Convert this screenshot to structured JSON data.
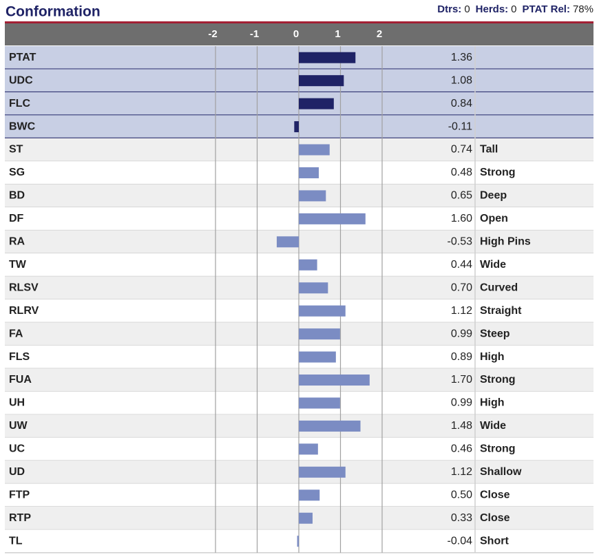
{
  "chart_data": {
    "type": "bar",
    "orientation": "horizontal",
    "title": "Conformation",
    "stats": [
      {
        "label": "Dtrs:",
        "value": "0"
      },
      {
        "label": "Herds:",
        "value": "0"
      },
      {
        "label": "PTAT Rel:",
        "value": "78%"
      }
    ],
    "categories": [
      "PTAT",
      "UDC",
      "FLC",
      "BWC",
      "ST",
      "SG",
      "BD",
      "DF",
      "RA",
      "TW",
      "RLSV",
      "RLRV",
      "FA",
      "FLS",
      "FUA",
      "UH",
      "UW",
      "UC",
      "UD",
      "FTP",
      "RTP",
      "TL"
    ],
    "values": [
      1.36,
      1.08,
      0.84,
      -0.11,
      0.74,
      0.48,
      0.65,
      1.6,
      -0.53,
      0.44,
      0.7,
      1.12,
      0.99,
      0.89,
      1.7,
      0.99,
      1.48,
      0.46,
      1.12,
      0.5,
      0.33,
      -0.04
    ],
    "value_labels": [
      "1.36",
      "1.08",
      "0.84",
      "-0.11",
      "0.74",
      "0.48",
      "0.65",
      "1.60",
      "-0.53",
      "0.44",
      "0.70",
      "1.12",
      "0.99",
      "0.89",
      "1.70",
      "0.99",
      "1.48",
      "0.46",
      "1.12",
      "0.50",
      "0.33",
      "-0.04"
    ],
    "descriptors": [
      null,
      null,
      null,
      null,
      "Tall",
      "Strong",
      "Deep",
      "Open",
      "High Pins",
      "Wide",
      "Curved",
      "Straight",
      "Steep",
      "High",
      "Strong",
      "High",
      "Wide",
      "Strong",
      "Shallow",
      "Close",
      "Close",
      "Short"
    ],
    "colors": [
      "#1f2366",
      "#1f2366",
      "#1f2366",
      "#1f2366",
      "#7b8cc3",
      "#7b8cc3",
      "#7b8cc3",
      "#7b8cc3",
      "#7b8cc3",
      "#7b8cc3",
      "#7b8cc3",
      "#7b8cc3",
      "#7b8cc3",
      "#7b8cc3",
      "#7b8cc3",
      "#7b8cc3",
      "#7b8cc3",
      "#7b8cc3",
      "#7b8cc3",
      "#7b8cc3",
      "#7b8cc3",
      "#7b8cc3"
    ],
    "xlim": [
      -2,
      2
    ],
    "xticks": [
      -2,
      -1,
      0,
      1,
      2
    ],
    "grid": true
  }
}
